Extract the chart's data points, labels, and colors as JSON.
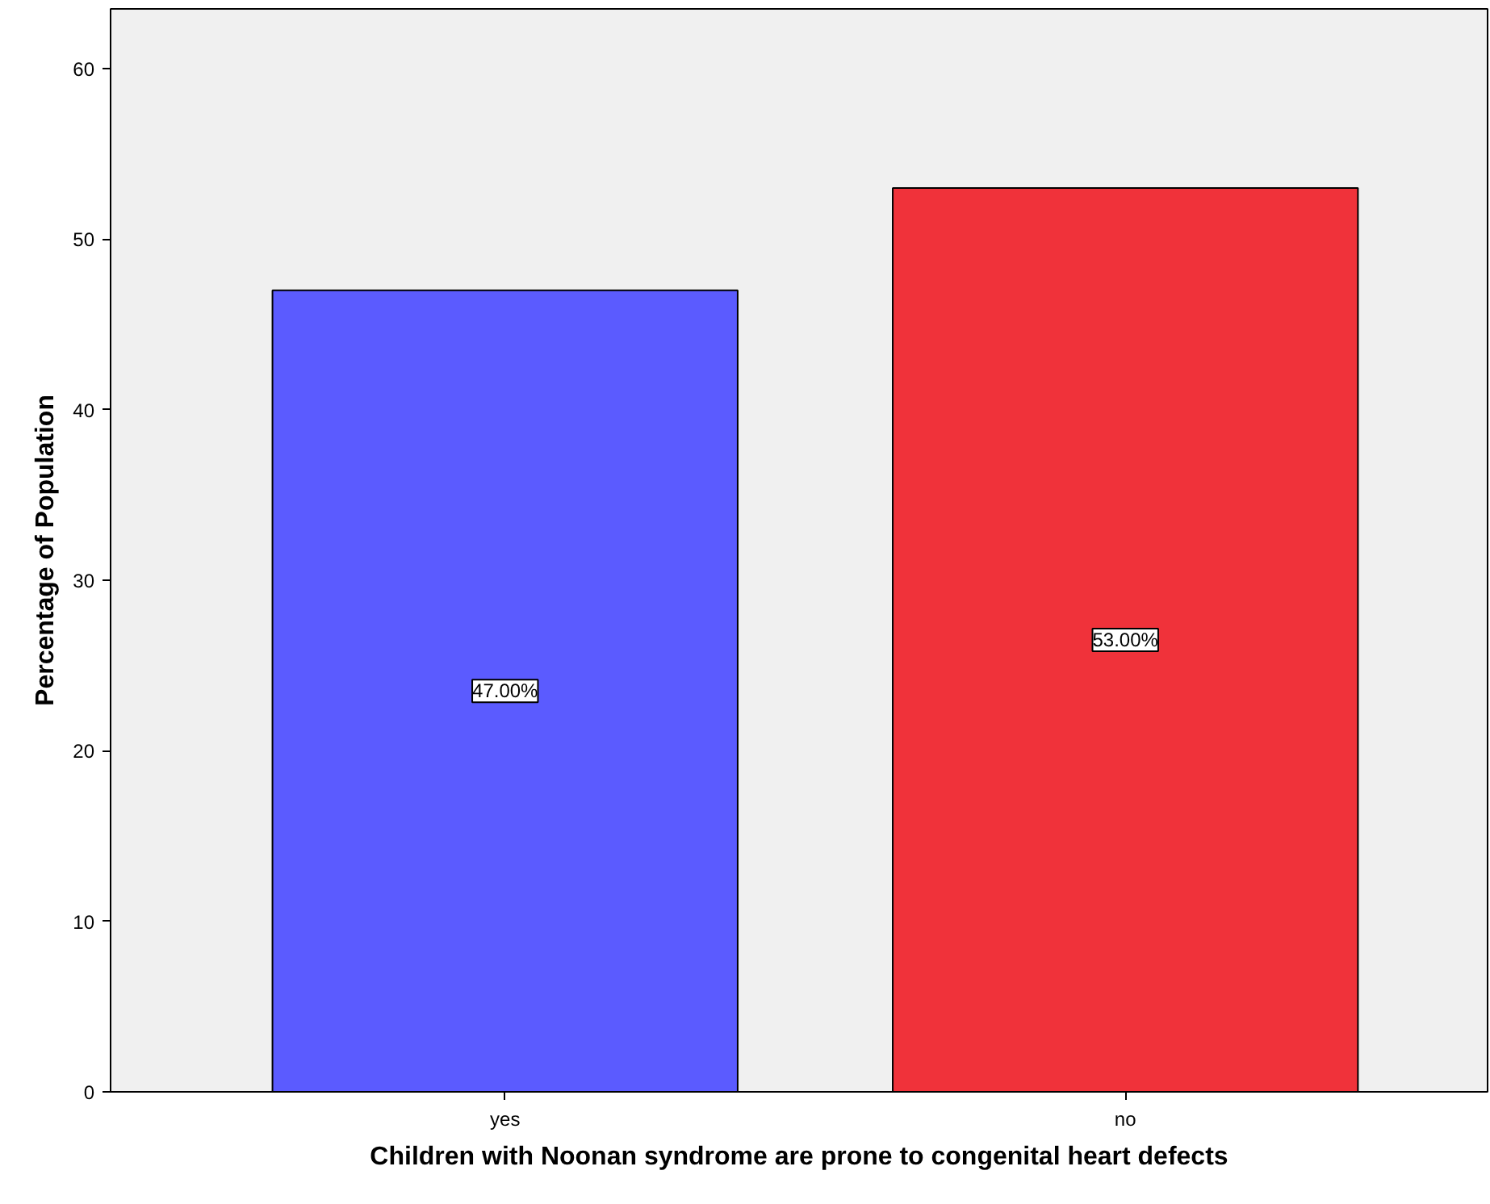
{
  "chart_data": {
    "type": "bar",
    "xlabel": "Children with Noonan syndrome are prone to congenital heart defects",
    "ylabel": "Percentage of Population",
    "categories": [
      "yes",
      "no"
    ],
    "values": [
      47,
      53
    ],
    "colors": [
      "#5b5bff",
      "#f0323a"
    ],
    "value_labels": [
      "47.00%",
      "53.00%"
    ],
    "ylim": [
      0,
      63.5
    ],
    "yticks": [
      0,
      10,
      20,
      30,
      40,
      50,
      60
    ],
    "grid": false
  }
}
